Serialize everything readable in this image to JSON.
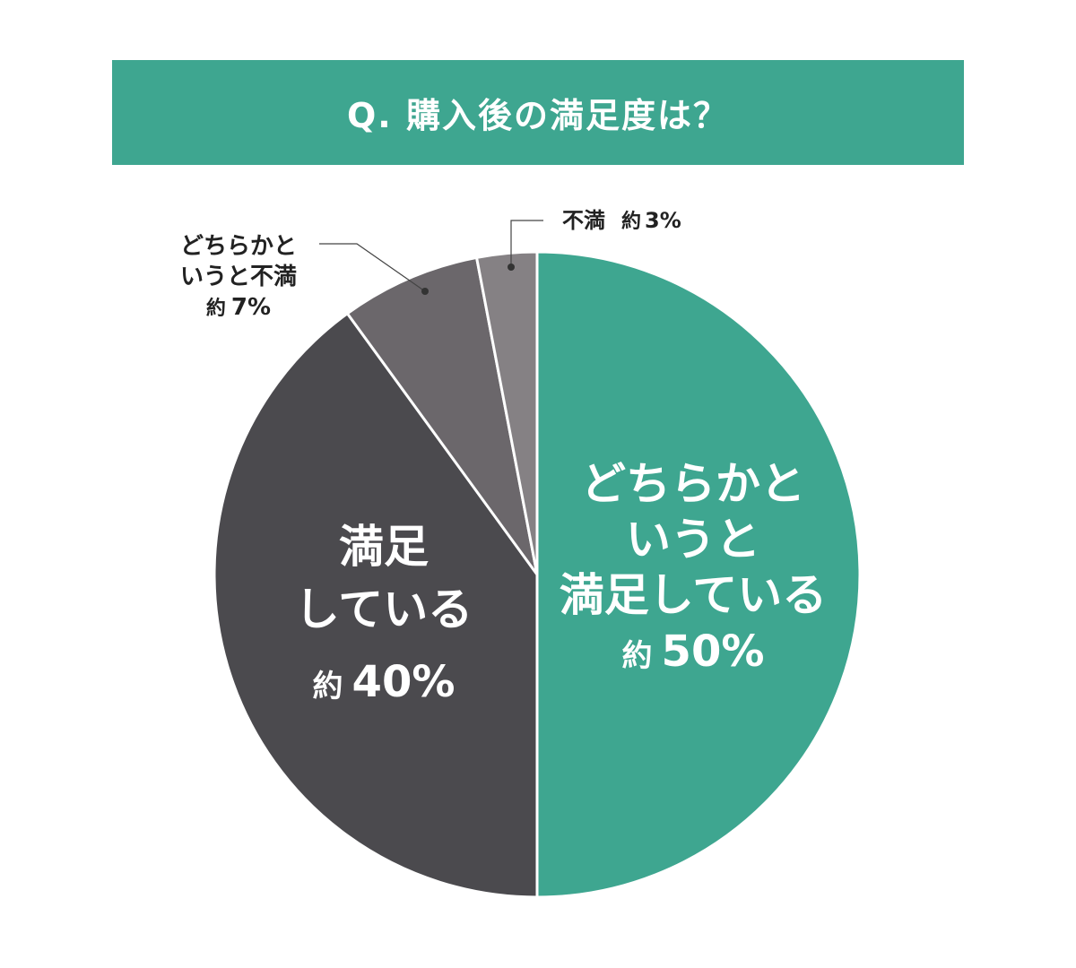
{
  "colors": {
    "banner": "#3ea690",
    "satisfied_somewhat": "#3ea690",
    "satisfied": "#4b4a4e",
    "dissatisfied_somewhat": "#6b676b",
    "dissatisfied": "#858184",
    "label_dark": "#222222",
    "label_light": "#ffffff"
  },
  "chart_data": {
    "type": "pie",
    "title": "Q. 購入後の満足度は？",
    "slices": [
      {
        "label_lines": [
          "どちらかと",
          "いうと",
          "満足している"
        ],
        "prefix": "約",
        "value_text": "50%",
        "value": 50,
        "color_key": "satisfied_somewhat"
      },
      {
        "label_lines": [
          "満足",
          "している"
        ],
        "prefix": "約",
        "value_text": "40%",
        "value": 40,
        "color_key": "satisfied"
      },
      {
        "label_lines": [
          "どちらかと",
          "いうと不満"
        ],
        "prefix": "約",
        "value_text": "7%",
        "value": 7,
        "color_key": "dissatisfied_somewhat"
      },
      {
        "label_lines": [
          "不満"
        ],
        "prefix": "約",
        "value_text": "3%",
        "value": 3,
        "color_key": "dissatisfied"
      }
    ]
  }
}
